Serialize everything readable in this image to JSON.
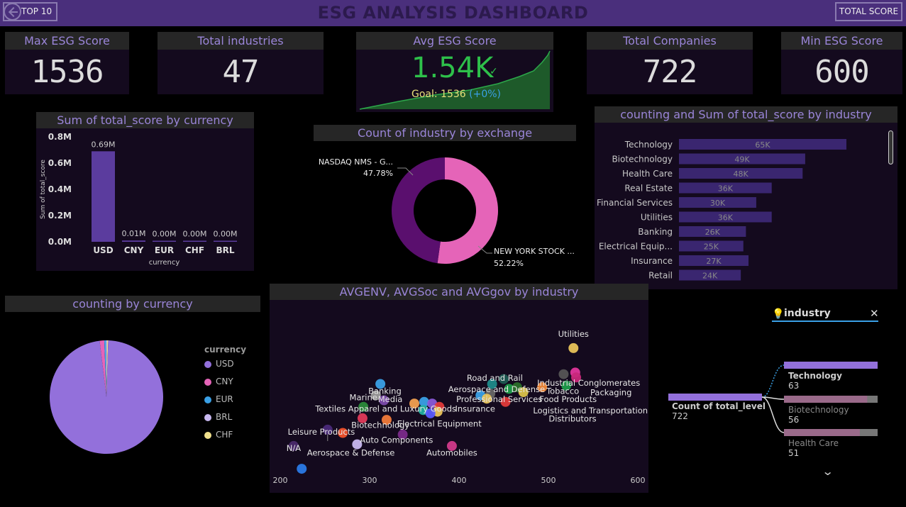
{
  "header": {
    "title": "ESG ANALYSIS DASHBOARD",
    "back_label": "TOP 10",
    "total_label": "TOTAL SCORE"
  },
  "kpis": {
    "max": {
      "title": "Max ESG Score",
      "value": "1536"
    },
    "industries": {
      "title": "Total industries",
      "value": "47"
    },
    "avg": {
      "title": "Avg ESG Score",
      "value": "1.54K",
      "goal": "Goal: 1536",
      "delta": "(+0%)"
    },
    "companies": {
      "title": "Total Companies",
      "value": "722"
    },
    "min": {
      "title": "Min ESG Score",
      "value": "600"
    }
  },
  "currency_chart": {
    "title": "Sum of total_score by currency",
    "chart_data": {
      "type": "bar",
      "categories": [
        "USD",
        "CNY",
        "EUR",
        "CHF",
        "BRL"
      ],
      "values": [
        0.69,
        0.01,
        0.0,
        0.0,
        0.0
      ],
      "data_labels": [
        "0.69M",
        "0.01M",
        "0.00M",
        "0.00M",
        "0.00M"
      ],
      "yticks": [
        "0.8M",
        "0.6M",
        "0.4M",
        "0.2M",
        "0.0M"
      ],
      "ylim": [
        0,
        0.8
      ],
      "xlabel": "currency",
      "ylabel": "Sum of total_score",
      "color": "#5b3c9e"
    }
  },
  "exchange_chart": {
    "title": "Count of industry by exchange",
    "chart_data": {
      "type": "pie",
      "labels": [
        "NASDAQ NMS - G...",
        "NEW YORK STOCK ..."
      ],
      "values": [
        47.78,
        52.22
      ],
      "data_labels": [
        "47.78%",
        "52.22%"
      ],
      "colors": [
        "#5a0f6e",
        "#e564b8"
      ]
    }
  },
  "industry_chart": {
    "title": "counting and Sum of total_score by industry",
    "chart_data": {
      "type": "bar",
      "categories": [
        "Technology",
        "Biotechnology",
        "Health Care",
        "Real Estate",
        "Financial Services",
        "Utilities",
        "Banking",
        "Electrical Equip...",
        "Insurance",
        "Retail"
      ],
      "values": [
        65,
        49,
        48,
        36,
        30,
        36,
        26,
        25,
        27,
        24
      ],
      "data_labels": [
        "65K",
        "49K",
        "48K",
        "36K",
        "30K",
        "36K",
        "26K",
        "25K",
        "27K",
        "24K"
      ],
      "color": "#3a2670"
    }
  },
  "currency_pie": {
    "title": "counting by currency",
    "legend_title": "currency",
    "chart_data": {
      "type": "pie",
      "labels": [
        "USD",
        "CNY",
        "EUR",
        "BRL",
        "CHF"
      ],
      "values": [
        97.6,
        1.3,
        0.5,
        0.3,
        0.3
      ],
      "colors": [
        "#9370db",
        "#e564b8",
        "#3aa0e6",
        "#c8b8f0",
        "#f0e08c"
      ]
    }
  },
  "scatter_chart": {
    "title": "AVGENV, AVGSoc and AVGgov by industry",
    "chart_data": {
      "type": "scatter",
      "xticks": [
        "200",
        "300",
        "400",
        "500",
        "600"
      ],
      "xlim": [
        200,
        600
      ],
      "labels": [
        {
          "text": "Utilities",
          "x": 528,
          "y": 0.16
        },
        {
          "text": "Road and Rail",
          "x": 440,
          "y": 0.43
        },
        {
          "text": "Industrial Conglomerates",
          "x": 545,
          "y": 0.46
        },
        {
          "text": "Aerospace and Defense",
          "x": 442,
          "y": 0.5
        },
        {
          "text": "Banking",
          "x": 317,
          "y": 0.51
        },
        {
          "text": "Tobacco",
          "x": 516,
          "y": 0.51
        },
        {
          "text": "Packaging",
          "x": 570,
          "y": 0.52
        },
        {
          "text": "Marine",
          "x": 293,
          "y": 0.55
        },
        {
          "text": "Media",
          "x": 323,
          "y": 0.56
        },
        {
          "text": "Professional Services",
          "x": 445,
          "y": 0.56
        },
        {
          "text": "Food Products",
          "x": 522,
          "y": 0.56
        },
        {
          "text": "Textiles Apparel and Luxury Goods",
          "x": 318,
          "y": 0.62
        },
        {
          "text": "Insurance",
          "x": 418,
          "y": 0.62
        },
        {
          "text": "Logistics and Transportation",
          "x": 547,
          "y": 0.63
        },
        {
          "text": "Distributors",
          "x": 527,
          "y": 0.68
        },
        {
          "text": "Electrical Equipment",
          "x": 378,
          "y": 0.71
        },
        {
          "text": "Biotechnology",
          "x": 312,
          "y": 0.72
        },
        {
          "text": "Leisure Products",
          "x": 246,
          "y": 0.76
        },
        {
          "text": "Auto Components",
          "x": 330,
          "y": 0.81
        },
        {
          "text": "N/A",
          "x": 215,
          "y": 0.86
        },
        {
          "text": "Aerospace & Defense",
          "x": 279,
          "y": 0.89
        },
        {
          "text": "Automobiles",
          "x": 392,
          "y": 0.89
        }
      ],
      "points": [
        {
          "x": 528,
          "y": 0.23,
          "c": "#e8c35a"
        },
        {
          "x": 450,
          "y": 0.42,
          "c": "#1e5a52"
        },
        {
          "x": 517,
          "y": 0.39,
          "c": "#555"
        },
        {
          "x": 530,
          "y": 0.38,
          "c": "#e0359b"
        },
        {
          "x": 531,
          "y": 0.41,
          "c": "#c8287a"
        },
        {
          "x": 437,
          "y": 0.45,
          "c": "#1d8a8a"
        },
        {
          "x": 312,
          "y": 0.45,
          "c": "#3aa0e6"
        },
        {
          "x": 456,
          "y": 0.48,
          "c": "#1d9c4a"
        },
        {
          "x": 465,
          "y": 0.47,
          "c": "#2a6f2a"
        },
        {
          "x": 472,
          "y": 0.5,
          "c": "#d8c24a"
        },
        {
          "x": 520,
          "y": 0.46,
          "c": "#1d9c4a"
        },
        {
          "x": 493,
          "y": 0.47,
          "c": "#f08a3a"
        },
        {
          "x": 424,
          "y": 0.52,
          "c": "#3aa0e6"
        },
        {
          "x": 435,
          "y": 0.51,
          "c": "#666"
        },
        {
          "x": 431,
          "y": 0.54,
          "c": "#e8c35a"
        },
        {
          "x": 452,
          "y": 0.56,
          "c": "#e03a3a"
        },
        {
          "x": 307,
          "y": 0.52,
          "c": "#999"
        },
        {
          "x": 316,
          "y": 0.55,
          "c": "#7a4aaa"
        },
        {
          "x": 293,
          "y": 0.59,
          "c": "#2a8a3a"
        },
        {
          "x": 350,
          "y": 0.57,
          "c": "#f0a050"
        },
        {
          "x": 361,
          "y": 0.56,
          "c": "#3aa0e6"
        },
        {
          "x": 370,
          "y": 0.57,
          "c": "#8a5ad8"
        },
        {
          "x": 378,
          "y": 0.59,
          "c": "#e03a3a"
        },
        {
          "x": 376,
          "y": 0.62,
          "c": "#e8c35a"
        },
        {
          "x": 360,
          "y": 0.61,
          "c": "#20b0a0"
        },
        {
          "x": 368,
          "y": 0.63,
          "c": "#5a5aff"
        },
        {
          "x": 292,
          "y": 0.66,
          "c": "#e03a5a"
        },
        {
          "x": 319,
          "y": 0.67,
          "c": "#f07a3a"
        },
        {
          "x": 253,
          "y": 0.73,
          "c": "#4a2a7a"
        },
        {
          "x": 270,
          "y": 0.75,
          "c": "#f0502a"
        },
        {
          "x": 337,
          "y": 0.76,
          "c": "#7a2a8a"
        },
        {
          "x": 286,
          "y": 0.82,
          "c": "#c8b8f0"
        },
        {
          "x": 392,
          "y": 0.83,
          "c": "#d03a8a"
        },
        {
          "x": 215,
          "y": 0.83,
          "c": "#4a2a6a"
        },
        {
          "x": 224,
          "y": 0.97,
          "c": "#2a7ae6"
        }
      ]
    }
  },
  "decomp": {
    "field_label": "industry",
    "root_label": "Count of total_level",
    "root_value": "722",
    "chart_data": {
      "type": "bar",
      "categories": [
        "Technology",
        "Biotechnology",
        "Health Care"
      ],
      "values": [
        63,
        56,
        51
      ]
    }
  }
}
